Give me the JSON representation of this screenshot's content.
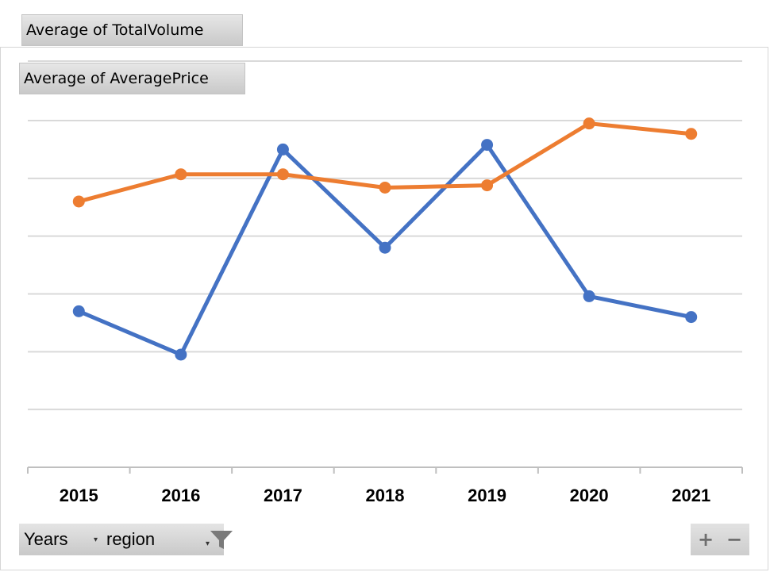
{
  "fields": {
    "total_volume": "Average of TotalVolume",
    "average_price": "Average of AveragePrice"
  },
  "axis_fields": {
    "years": "Years",
    "region": "region"
  },
  "zoom": {
    "in": "+",
    "out": "−"
  },
  "colors": {
    "total_volume": "#4472C4",
    "average_price": "#ED7D31",
    "gridline": "#D9D9D9",
    "axis": "#BFBFBF"
  },
  "chart_data": {
    "type": "line",
    "categories": [
      "2015",
      "2016",
      "2017",
      "2018",
      "2019",
      "2020",
      "2021"
    ],
    "ylim": [
      0,
      6
    ],
    "yticks": [
      0,
      1,
      2,
      3,
      4,
      5,
      6
    ],
    "grid": true,
    "series": [
      {
        "name": "Average of TotalVolume",
        "color": "#4472C4",
        "values": [
          2.7,
          1.95,
          5.5,
          3.8,
          5.58,
          2.96,
          2.6
        ]
      },
      {
        "name": "Average of AveragePrice",
        "color": "#ED7D31",
        "values": [
          4.6,
          5.07,
          5.07,
          4.84,
          4.88,
          5.95,
          5.77
        ]
      }
    ]
  }
}
